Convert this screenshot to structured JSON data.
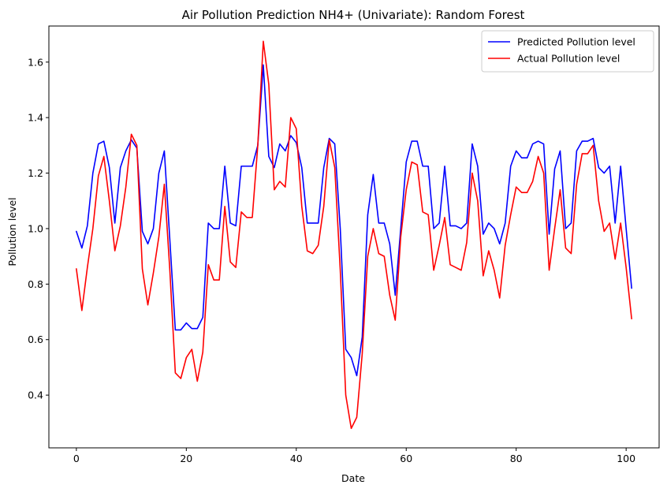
{
  "chart_data": {
    "type": "line",
    "title": "Air Pollution Prediction NH4+ (Univariate): Random Forest",
    "xlabel": "Date",
    "ylabel": "Pollution level",
    "xlim": [
      -5,
      106
    ],
    "ylim": [
      0.21,
      1.73
    ],
    "xticks": [
      0,
      20,
      40,
      60,
      80,
      100
    ],
    "yticks": [
      0.4,
      0.6,
      0.8,
      1.0,
      1.2,
      1.4,
      1.6
    ],
    "xtick_labels": [
      "0",
      "20",
      "40",
      "60",
      "80",
      "100"
    ],
    "ytick_labels": [
      "0.4",
      "0.6",
      "0.8",
      "1.0",
      "1.2",
      "1.4",
      "1.6"
    ],
    "grid": false,
    "legend_position": "top-right",
    "x": [
      0,
      1,
      2,
      3,
      4,
      5,
      6,
      7,
      8,
      9,
      10,
      11,
      12,
      13,
      14,
      15,
      16,
      17,
      18,
      19,
      20,
      21,
      22,
      23,
      24,
      25,
      26,
      27,
      28,
      29,
      30,
      31,
      32,
      33,
      34,
      35,
      36,
      37,
      38,
      39,
      40,
      41,
      42,
      43,
      44,
      45,
      46,
      47,
      48,
      49,
      50,
      51,
      52,
      53,
      54,
      55,
      56,
      57,
      58,
      59,
      60,
      61,
      62,
      63,
      64,
      65,
      66,
      67,
      68,
      69,
      70,
      71,
      72,
      73,
      74,
      75,
      76,
      77,
      78,
      79,
      80,
      81,
      82,
      83,
      84,
      85,
      86,
      87,
      88,
      89,
      90,
      91,
      92,
      93,
      94,
      95,
      96,
      97,
      98,
      99,
      100,
      101
    ],
    "series": [
      {
        "name": "Predicted Pollution level",
        "color": "#0000ff",
        "values": [
          0.99,
          0.93,
          1.01,
          1.2,
          1.305,
          1.315,
          1.22,
          1.02,
          1.22,
          1.28,
          1.32,
          1.29,
          0.99,
          0.945,
          1.0,
          1.2,
          1.28,
          0.96,
          0.635,
          0.635,
          0.66,
          0.64,
          0.64,
          0.68,
          1.02,
          1.0,
          1.0,
          1.225,
          1.02,
          1.01,
          1.225,
          1.225,
          1.225,
          1.3,
          1.59,
          1.26,
          1.22,
          1.305,
          1.28,
          1.335,
          1.31,
          1.22,
          1.02,
          1.02,
          1.02,
          1.22,
          1.325,
          1.305,
          1.0,
          0.565,
          0.535,
          0.47,
          0.61,
          1.05,
          1.195,
          1.02,
          1.02,
          0.945,
          0.76,
          1.0,
          1.24,
          1.315,
          1.315,
          1.225,
          1.225,
          1.0,
          1.02,
          1.225,
          1.01,
          1.01,
          1.0,
          1.02,
          1.305,
          1.225,
          0.98,
          1.02,
          1.0,
          0.945,
          1.02,
          1.225,
          1.28,
          1.255,
          1.255,
          1.305,
          1.315,
          1.305,
          0.98,
          1.215,
          1.28,
          1.0,
          1.02,
          1.28,
          1.315,
          1.315,
          1.325,
          1.22,
          1.2,
          1.225,
          1.02,
          1.225,
          1.0,
          0.785
        ]
      },
      {
        "name": "Actual Pollution level",
        "color": "#ff0000",
        "values": [
          0.855,
          0.705,
          0.86,
          1.0,
          1.19,
          1.26,
          1.1,
          0.92,
          1.01,
          1.15,
          1.34,
          1.3,
          0.855,
          0.725,
          0.84,
          0.97,
          1.16,
          0.85,
          0.48,
          0.46,
          0.535,
          0.565,
          0.45,
          0.555,
          0.87,
          0.815,
          0.815,
          1.08,
          0.88,
          0.86,
          1.06,
          1.04,
          1.04,
          1.3,
          1.675,
          1.52,
          1.14,
          1.17,
          1.15,
          1.4,
          1.36,
          1.08,
          0.92,
          0.91,
          0.94,
          1.08,
          1.32,
          1.22,
          0.85,
          0.4,
          0.28,
          0.32,
          0.55,
          0.9,
          1.0,
          0.91,
          0.9,
          0.76,
          0.67,
          0.97,
          1.14,
          1.24,
          1.23,
          1.06,
          1.05,
          0.85,
          0.94,
          1.04,
          0.87,
          0.86,
          0.85,
          0.95,
          1.2,
          1.1,
          0.83,
          0.92,
          0.85,
          0.75,
          0.94,
          1.05,
          1.15,
          1.13,
          1.13,
          1.17,
          1.26,
          1.2,
          0.85,
          1.0,
          1.14,
          0.93,
          0.91,
          1.16,
          1.27,
          1.27,
          1.3,
          1.1,
          0.99,
          1.02,
          0.89,
          1.02,
          0.86,
          0.675
        ]
      }
    ]
  }
}
